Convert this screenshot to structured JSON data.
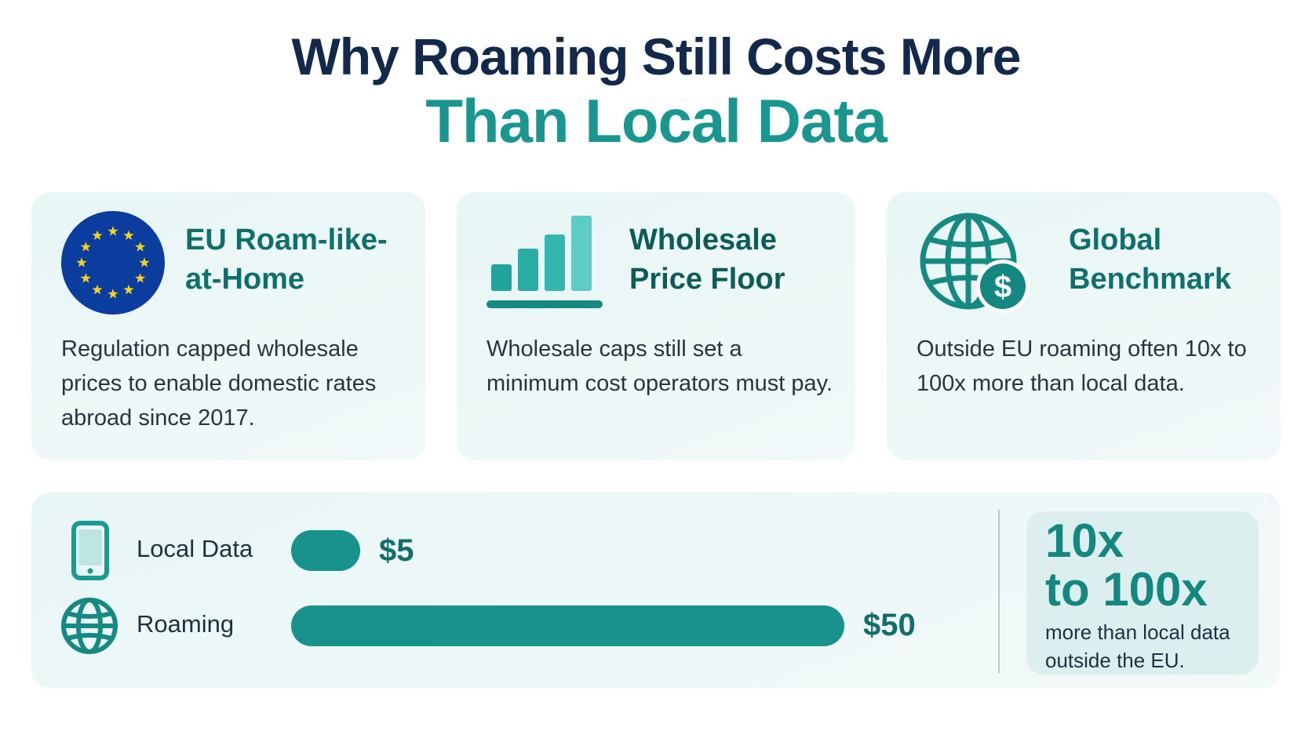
{
  "title": {
    "line1": "Why Roaming Still Costs More",
    "line2": "Than Local Data"
  },
  "cards": [
    {
      "icon": "eu-flag-icon",
      "title": "EU Roam-like-\nat-Home",
      "body": "Regulation capped wholesale prices to enable domestic rates abroad since 2017."
    },
    {
      "icon": "bar-chart-icon",
      "title": "Wholesale\nPrice Floor",
      "body": "Wholesale caps still set a minimum cost operators must pay."
    },
    {
      "icon": "globe-dollar-icon",
      "title": "Global\nBenchmark",
      "body": "Outside EU roaming often 10x to 100x more than local data."
    }
  ],
  "comparison": {
    "rows": [
      {
        "icon": "phone-icon",
        "label": "Local Data",
        "value_label": "$5",
        "value": 5
      },
      {
        "icon": "globe-icon",
        "label": "Roaming",
        "value_label": "$50",
        "value": 50
      }
    ],
    "max_value": 50,
    "callout": {
      "line1": "10x",
      "line2": "to 100x",
      "sub": "more than local data\noutside the EU."
    }
  },
  "colors": {
    "navy": "#13294b",
    "teal": "#19968f",
    "bar": "#17928c",
    "eu_blue": "#0b3d9e",
    "eu_star": "#f6d21b"
  }
}
